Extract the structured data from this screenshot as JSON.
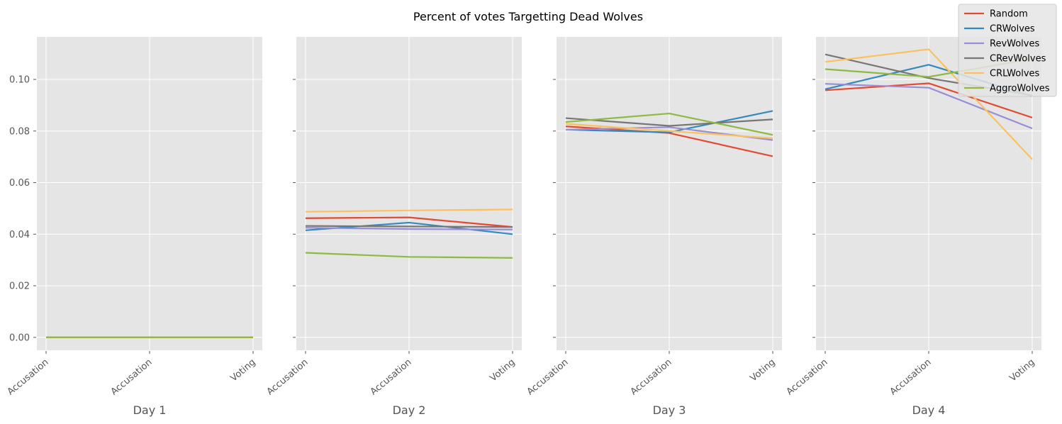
{
  "chart_data": {
    "type": "line",
    "title": "Percent of votes Targetting Dead Wolves",
    "categories": [
      "Accusation",
      "Accusation",
      "Voting"
    ],
    "ylim": [
      -0.005,
      0.1165
    ],
    "yticks": [
      "0.00",
      "0.02",
      "0.04",
      "0.06",
      "0.08",
      "0.10"
    ],
    "ytick_values": [
      0.0,
      0.02,
      0.04,
      0.06,
      0.08,
      0.1
    ],
    "grid": true,
    "legend_position": "top-right",
    "colors": {
      "Random": "#E24A33",
      "CRWolves": "#348ABD",
      "RevWolves": "#988ED5",
      "CRevWolves": "#777777",
      "CRLWolves": "#FBC15E",
      "AggroWolves": "#8EBA42"
    },
    "legend": [
      "Random",
      "CRWolves",
      "RevWolves",
      "CRevWolves",
      "CRLWolves",
      "AggroWolves"
    ],
    "panels": [
      {
        "xlabel": "Day 1",
        "series": [
          {
            "name": "Random",
            "values": [
              0.0,
              0.0,
              0.0
            ]
          },
          {
            "name": "CRWolves",
            "values": [
              0.0,
              0.0,
              0.0
            ]
          },
          {
            "name": "RevWolves",
            "values": [
              0.0,
              0.0,
              0.0
            ]
          },
          {
            "name": "CRevWolves",
            "values": [
              0.0,
              0.0,
              0.0
            ]
          },
          {
            "name": "CRLWolves",
            "values": [
              0.0,
              0.0,
              0.0
            ]
          },
          {
            "name": "AggroWolves",
            "values": [
              0.0,
              0.0,
              0.0
            ]
          }
        ]
      },
      {
        "xlabel": "Day 2",
        "series": [
          {
            "name": "Random",
            "values": [
              0.0462,
              0.0465,
              0.0428
            ]
          },
          {
            "name": "CRWolves",
            "values": [
              0.0415,
              0.0445,
              0.04
            ]
          },
          {
            "name": "RevWolves",
            "values": [
              0.0425,
              0.042,
              0.0418
            ]
          },
          {
            "name": "CRevWolves",
            "values": [
              0.0432,
              0.043,
              0.0428
            ]
          },
          {
            "name": "CRLWolves",
            "values": [
              0.0487,
              0.0492,
              0.0496
            ]
          },
          {
            "name": "AggroWolves",
            "values": [
              0.0328,
              0.0312,
              0.0308
            ]
          }
        ]
      },
      {
        "xlabel": "Day 3",
        "series": [
          {
            "name": "Random",
            "values": [
              0.0818,
              0.0792,
              0.0702
            ]
          },
          {
            "name": "CRWolves",
            "values": [
              0.0805,
              0.0795,
              0.0878
            ]
          },
          {
            "name": "RevWolves",
            "values": [
              0.0805,
              0.0815,
              0.0765
            ]
          },
          {
            "name": "CRevWolves",
            "values": [
              0.085,
              0.082,
              0.0845
            ]
          },
          {
            "name": "CRLWolves",
            "values": [
              0.0828,
              0.08,
              0.0772
            ]
          },
          {
            "name": "AggroWolves",
            "values": [
              0.0835,
              0.0868,
              0.0785
            ]
          }
        ]
      },
      {
        "xlabel": "Day 4",
        "series": [
          {
            "name": "Random",
            "values": [
              0.0958,
              0.0985,
              0.0852
            ]
          },
          {
            "name": "CRWolves",
            "values": [
              0.0962,
              0.1057,
              0.0935
            ]
          },
          {
            "name": "RevWolves",
            "values": [
              0.0983,
              0.0968,
              0.081
            ]
          },
          {
            "name": "CRevWolves",
            "values": [
              0.1097,
              0.1005,
              0.0938
            ]
          },
          {
            "name": "CRLWolves",
            "values": [
              0.1068,
              0.1117,
              0.069
            ]
          },
          {
            "name": "AggroWolves",
            "values": [
              0.104,
              0.101,
              0.108
            ]
          }
        ]
      }
    ]
  }
}
